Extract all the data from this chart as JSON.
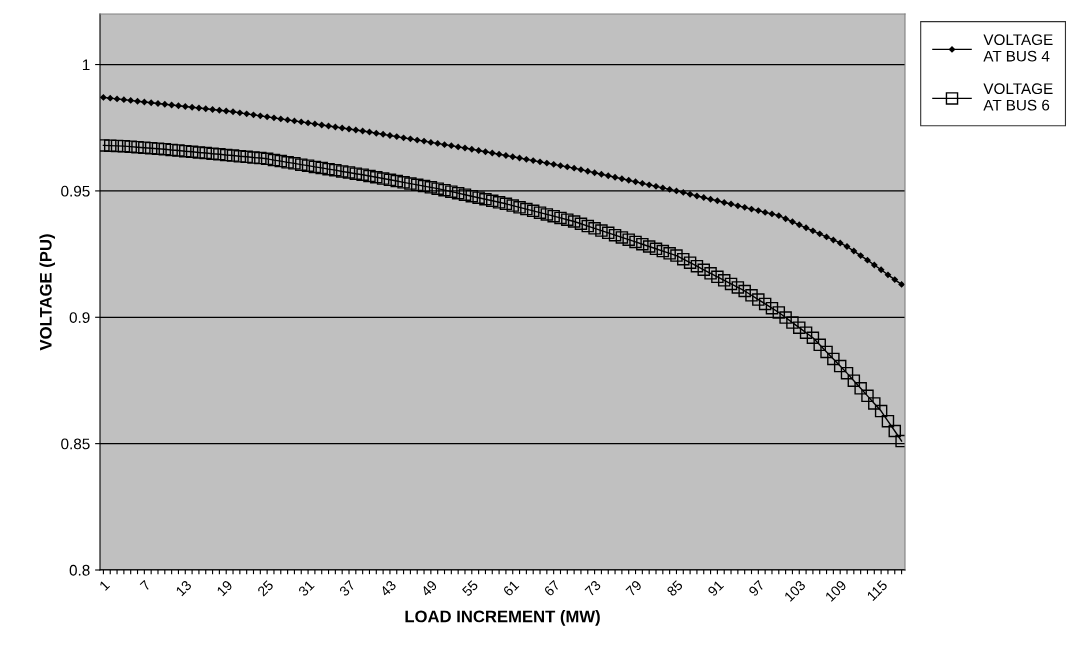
{
  "chart_data": {
    "type": "line",
    "xlabel": "LOAD INCREMENT (MW)",
    "ylabel": "VOLTAGE (PU)",
    "categories": [
      "1",
      null,
      null,
      null,
      null,
      null,
      "7",
      null,
      null,
      null,
      null,
      null,
      "13",
      null,
      null,
      null,
      null,
      null,
      "19",
      null,
      null,
      null,
      null,
      null,
      "25",
      null,
      null,
      null,
      null,
      null,
      "31",
      null,
      null,
      null,
      null,
      null,
      "37",
      null,
      null,
      null,
      null,
      null,
      "43",
      null,
      null,
      null,
      null,
      null,
      "49",
      null,
      null,
      null,
      null,
      null,
      "55",
      null,
      null,
      null,
      null,
      null,
      "61",
      null,
      null,
      null,
      null,
      null,
      "67",
      null,
      null,
      null,
      null,
      null,
      "73",
      null,
      null,
      null,
      null,
      null,
      "79",
      null,
      null,
      null,
      null,
      null,
      "85",
      null,
      null,
      null,
      null,
      null,
      "91",
      null,
      null,
      null,
      null,
      null,
      "97",
      null,
      null,
      null,
      null,
      null,
      "103",
      null,
      null,
      null,
      null,
      null,
      "109",
      null,
      null,
      null,
      null,
      null,
      "115",
      null,
      null,
      null
    ],
    "series": [
      {
        "name": "VOLTAGE\nAT BUS 4",
        "color": "#000000",
        "marker": "diamond",
        "values": [
          0.987,
          0.9867,
          0.9864,
          0.9861,
          0.9858,
          0.9855,
          0.9852,
          0.9849,
          0.9846,
          0.9843,
          0.984,
          0.9837,
          0.9834,
          0.9831,
          0.9828,
          0.9825,
          0.9822,
          0.9819,
          0.9816,
          0.9813,
          0.9809,
          0.9805,
          0.9801,
          0.9797,
          0.9793,
          0.9789,
          0.9785,
          0.9781,
          0.9777,
          0.9773,
          0.9769,
          0.9765,
          0.9761,
          0.9757,
          0.9753,
          0.9749,
          0.9745,
          0.9741,
          0.9737,
          0.9733,
          0.9728,
          0.9724,
          0.9719,
          0.9715,
          0.971,
          0.9706,
          0.9701,
          0.9697,
          0.9692,
          0.9688,
          0.9683,
          0.9679,
          0.9674,
          0.967,
          0.9665,
          0.966,
          0.9655,
          0.965,
          0.9645,
          0.964,
          0.9635,
          0.963,
          0.9625,
          0.962,
          0.9615,
          0.961,
          0.9605,
          0.96,
          0.9595,
          0.959,
          0.9584,
          0.9578,
          0.9572,
          0.9566,
          0.956,
          0.9554,
          0.9548,
          0.9542,
          0.9536,
          0.953,
          0.9524,
          0.9518,
          0.9512,
          0.9506,
          0.95,
          0.9494,
          0.9487,
          0.948,
          0.9474,
          0.9467,
          0.9461,
          0.9454,
          0.9448,
          0.9441,
          0.9435,
          0.9428,
          0.9422,
          0.9415,
          0.9409,
          0.9402,
          0.939,
          0.9378,
          0.9366,
          0.9354,
          0.9342,
          0.933,
          0.9318,
          0.9306,
          0.9294,
          0.928,
          0.9262,
          0.9244,
          0.9226,
          0.9207,
          0.9188,
          0.9168,
          0.9149,
          0.913
        ]
      },
      {
        "name": "VOLTAGE\nAT BUS 6",
        "color": "#000000",
        "marker": "square",
        "values": [
          0.968,
          0.9679,
          0.9678,
          0.9677,
          0.9675,
          0.9673,
          0.9671,
          0.9669,
          0.9667,
          0.9665,
          0.9662,
          0.966,
          0.9657,
          0.9655,
          0.9652,
          0.965,
          0.9647,
          0.9645,
          0.9642,
          0.964,
          0.9637,
          0.9635,
          0.9632,
          0.963,
          0.9627,
          0.9622,
          0.9618,
          0.9613,
          0.9609,
          0.9604,
          0.96,
          0.9595,
          0.9591,
          0.9586,
          0.9582,
          0.9577,
          0.9573,
          0.9568,
          0.9564,
          0.9559,
          0.9554,
          0.9549,
          0.9544,
          0.9539,
          0.9534,
          0.9529,
          0.9524,
          0.9519,
          0.9514,
          0.9509,
          0.9503,
          0.9497,
          0.9491,
          0.9485,
          0.9479,
          0.9473,
          0.9467,
          0.9461,
          0.9455,
          0.9449,
          0.9442,
          0.9435,
          0.9428,
          0.9421,
          0.9414,
          0.9407,
          0.94,
          0.9393,
          0.9386,
          0.9379,
          0.937,
          0.9361,
          0.9352,
          0.9343,
          0.9334,
          0.9325,
          0.9316,
          0.9307,
          0.9298,
          0.9289,
          0.928,
          0.9271,
          0.9262,
          0.9253,
          0.9244,
          0.923,
          0.9216,
          0.9202,
          0.9188,
          0.9174,
          0.916,
          0.9146,
          0.9132,
          0.9118,
          0.9104,
          0.9087,
          0.907,
          0.9053,
          0.9036,
          0.9019,
          0.8999,
          0.8979,
          0.8959,
          0.8939,
          0.8919,
          0.8891,
          0.8863,
          0.8835,
          0.8807,
          0.8779,
          0.8749,
          0.8719,
          0.8689,
          0.8659,
          0.8629,
          0.8589,
          0.855,
          0.851
        ]
      }
    ],
    "ylim": [
      0.8,
      1.02
    ],
    "yticks": [
      0.8,
      0.85,
      0.9,
      0.95,
      1
    ],
    "grid": "y",
    "legend": "top right",
    "line_style": "solid"
  }
}
